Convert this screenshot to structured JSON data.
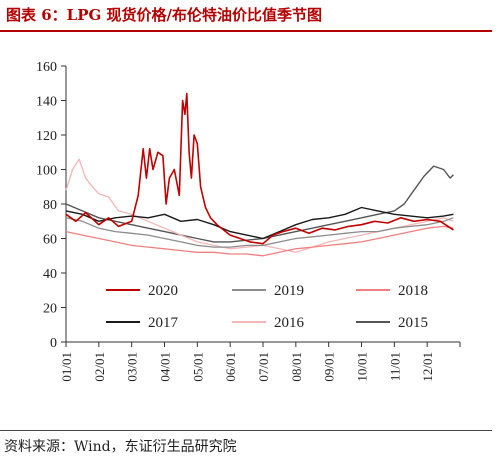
{
  "title": "图表 6：LPG 现货价格/布伦特油价比值季节图",
  "source": "资料来源：Wind，东证衍生品研究院",
  "chart_data": {
    "type": "line",
    "title": "图表 6：LPG 现货价格/布伦特油价比值季节图",
    "xlabel": "",
    "ylabel": "",
    "ylim": [
      0,
      160
    ],
    "yticks": [
      0,
      20,
      40,
      60,
      80,
      100,
      120,
      140,
      160
    ],
    "ytick_labels": [
      "0",
      "20",
      "40",
      "60",
      "80",
      "100",
      "120",
      "140",
      "160"
    ],
    "xlim": [
      1,
      13
    ],
    "xticks": [
      1,
      2,
      3,
      4,
      5,
      6,
      7,
      8,
      9,
      10,
      11,
      12
    ],
    "xtick_labels": [
      "01/01",
      "02/01",
      "03/01",
      "04/01",
      "05/01",
      "06/01",
      "07/01",
      "08/01",
      "09/01",
      "10/01",
      "11/01",
      "12/01"
    ],
    "grid": false,
    "legend_position": "bottom-center",
    "series": [
      {
        "name": "2020",
        "color": "#c00000",
        "width": 1.6,
        "x": [
          1,
          1.3,
          1.6,
          2,
          2.3,
          2.6,
          3,
          3.2,
          3.35,
          3.45,
          3.55,
          3.65,
          3.8,
          3.95,
          4.05,
          4.15,
          4.3,
          4.45,
          4.55,
          4.62,
          4.68,
          4.75,
          4.82,
          4.9,
          5,
          5.1,
          5.25,
          5.4,
          5.6,
          6,
          6.3,
          6.6,
          7,
          7.3,
          7.6,
          8,
          8.4,
          8.8,
          9.2,
          9.6,
          10,
          10.4,
          10.8,
          11.2,
          11.6,
          12,
          12.4,
          12.8
        ],
        "y": [
          74,
          70,
          75,
          68,
          72,
          67,
          70,
          85,
          112,
          95,
          112,
          100,
          110,
          108,
          80,
          95,
          100,
          85,
          140,
          132,
          144,
          110,
          95,
          120,
          115,
          90,
          78,
          72,
          68,
          62,
          60,
          58,
          57,
          62,
          64,
          66,
          63,
          66,
          65,
          67,
          68,
          70,
          69,
          72,
          70,
          71,
          70,
          65
        ]
      },
      {
        "name": "2019",
        "color": "#8c8c8c",
        "width": 1.3,
        "x": [
          1,
          1.5,
          2,
          2.5,
          3,
          3.5,
          4,
          4.5,
          5,
          5.5,
          6,
          6.5,
          7,
          7.5,
          8,
          8.5,
          9,
          9.5,
          10,
          10.5,
          11,
          11.5,
          12,
          12.5,
          12.8
        ],
        "y": [
          72,
          70,
          66,
          64,
          63,
          62,
          60,
          58,
          56,
          55,
          55,
          56,
          56,
          58,
          60,
          61,
          62,
          63,
          64,
          64,
          66,
          67,
          68,
          70,
          72
        ]
      },
      {
        "name": "2018",
        "color": "#f08080",
        "width": 1.3,
        "x": [
          1,
          1.5,
          2,
          2.5,
          3,
          3.5,
          4,
          4.5,
          5,
          5.5,
          6,
          6.5,
          7,
          7.5,
          8,
          8.5,
          9,
          9.5,
          10,
          10.5,
          11,
          11.5,
          12,
          12.5,
          12.8
        ],
        "y": [
          64,
          62,
          60,
          58,
          56,
          55,
          54,
          53,
          52,
          52,
          51,
          51,
          50,
          52,
          54,
          55,
          56,
          57,
          58,
          60,
          62,
          64,
          66,
          67,
          66
        ]
      },
      {
        "name": "2017",
        "color": "#1a1a1a",
        "width": 1.4,
        "x": [
          1,
          1.5,
          2,
          2.5,
          3,
          3.5,
          4,
          4.5,
          5,
          5.5,
          6,
          6.5,
          7,
          7.5,
          8,
          8.5,
          9,
          9.5,
          10,
          10.5,
          11,
          11.5,
          12,
          12.5,
          12.8
        ],
        "y": [
          76,
          74,
          70,
          72,
          73,
          72,
          74,
          70,
          71,
          68,
          64,
          62,
          60,
          64,
          68,
          71,
          72,
          74,
          78,
          76,
          74,
          73,
          72,
          73,
          74
        ]
      },
      {
        "name": "2016",
        "color": "#f4b6b6",
        "width": 1.3,
        "x": [
          1,
          1.2,
          1.4,
          1.6,
          1.8,
          2,
          2.3,
          2.6,
          3,
          3.5,
          4,
          4.5,
          5,
          5.5,
          6,
          6.5,
          7,
          7.5,
          8,
          8.5,
          9,
          9.5,
          10,
          10.5,
          11,
          11.5,
          12,
          12.5,
          12.8
        ],
        "y": [
          88,
          100,
          106,
          95,
          90,
          86,
          84,
          76,
          74,
          70,
          66,
          62,
          58,
          56,
          54,
          55,
          56,
          54,
          52,
          55,
          58,
          60,
          62,
          64,
          66,
          68,
          70,
          72,
          70
        ]
      },
      {
        "name": "2015",
        "color": "#555555",
        "width": 1.4,
        "x": [
          1,
          1.5,
          2,
          2.5,
          3,
          3.5,
          4,
          4.5,
          5,
          5.5,
          6,
          6.5,
          7,
          7.5,
          8,
          8.5,
          9,
          9.5,
          10,
          10.5,
          11,
          11.3,
          11.6,
          11.9,
          12.2,
          12.5,
          12.7,
          12.8
        ],
        "y": [
          80,
          76,
          72,
          70,
          68,
          66,
          64,
          62,
          60,
          58,
          58,
          59,
          60,
          62,
          64,
          66,
          68,
          70,
          72,
          74,
          76,
          80,
          88,
          96,
          102,
          100,
          95,
          97
        ]
      }
    ]
  }
}
